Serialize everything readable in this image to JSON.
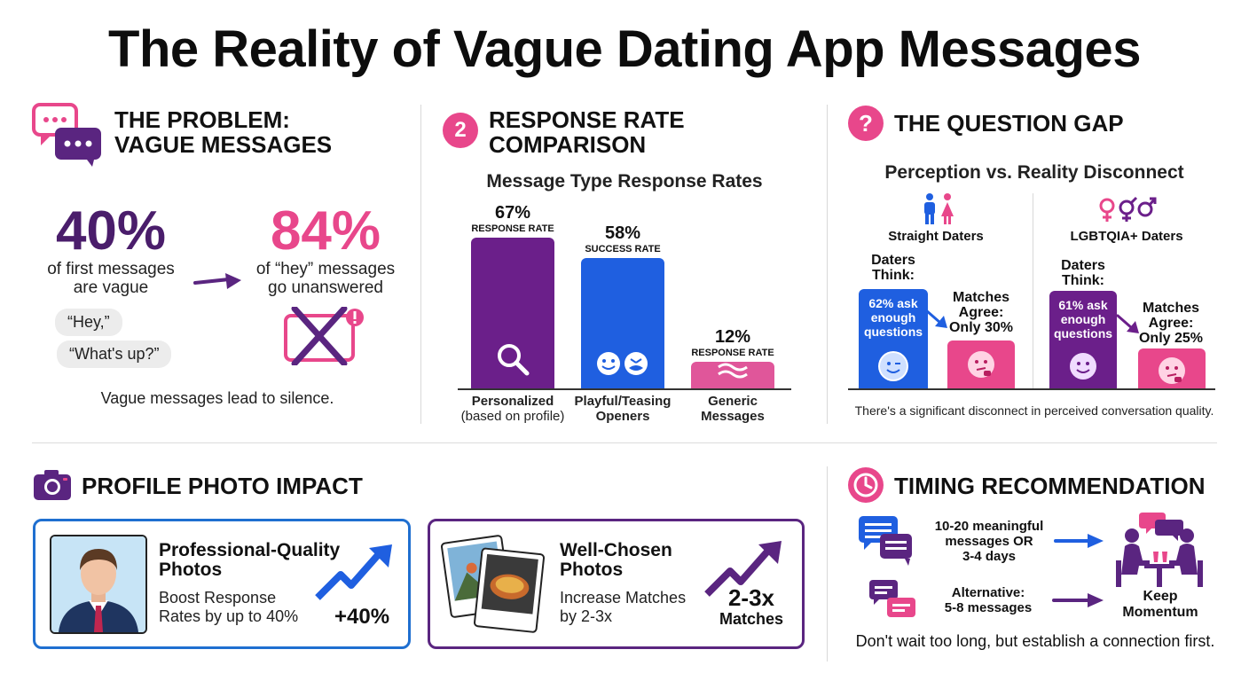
{
  "title": "The Reality of Vague Dating App Messages",
  "problem": {
    "heading_line1": "THE PROBLEM:",
    "heading_line2": "VAGUE MESSAGES",
    "stat1_value": "40%",
    "stat1_desc_line1": "of first messages",
    "stat1_desc_line2": "are vague",
    "stat2_value": "84%",
    "stat2_desc_line1": "of “hey” messages",
    "stat2_desc_line2": "go unanswered",
    "bubble1": "“Hey,”",
    "bubble2": "“What's up?”",
    "caption": "Vague messages lead to silence.",
    "colors": {
      "purple": "#4a1d6b",
      "pink": "#e8478b"
    }
  },
  "response": {
    "badge": "2",
    "heading_line1": "RESPONSE RATE",
    "heading_line2": "COMPARISON",
    "chart_title": "Message Type Response Rates"
  },
  "chart_data": {
    "type": "bar",
    "title": "Message Type Response Rates",
    "categories": [
      "Personalized (based on profile)",
      "Playful/Teasing Openers",
      "Generic Messages"
    ],
    "values": [
      67,
      58,
      12
    ],
    "value_labels": [
      "67%",
      "58%",
      "12%"
    ],
    "value_sublabels": [
      "RESPONSE RATE",
      "SUCCESS RATE",
      "RESPONSE RATE"
    ],
    "cat_line1": [
      "Personalized",
      "Playful/Teasing",
      "Generic"
    ],
    "cat_line2": [
      "(based on profile)",
      "Openers",
      "Messages"
    ],
    "colors": [
      "#6b1f8a",
      "#1f5fe0",
      "#e0569a"
    ],
    "ylim": [
      0,
      67
    ]
  },
  "question": {
    "heading": "THE QUESTION GAP",
    "subtitle": "Perception vs. Reality Disconnect",
    "straight": {
      "label": "Straight Daters",
      "think_label_line1": "Daters",
      "think_label_line2": "Think:",
      "think_value_line1": "62% ask",
      "think_value_line2": "enough",
      "think_value_line3": "questions",
      "agree_line1": "Matches",
      "agree_line2": "Agree:",
      "agree_line3": "Only 30%",
      "think_pct": 62,
      "agree_pct": 30
    },
    "lgbt": {
      "label": "LGBTQIA+ Daters",
      "think_label_line1": "Daters",
      "think_label_line2": "Think:",
      "think_value_line1": "61% ask",
      "think_value_line2": "enough",
      "think_value_line3": "questions",
      "agree_line1": "Matches",
      "agree_line2": "Agree:",
      "agree_line3": "Only 25%",
      "think_pct": 61,
      "agree_pct": 25
    },
    "caption": "There's a significant disconnect in perceived conversation quality."
  },
  "photo": {
    "heading": "PROFILE PHOTO IMPACT",
    "card1": {
      "title_line1": "Professional-Quality",
      "title_line2": "Photos",
      "desc_line1": "Boost Response",
      "desc_line2": "Rates by up to 40%",
      "stat": "+40%"
    },
    "card2": {
      "title_line1": "Well-Chosen",
      "title_line2": "Photos",
      "desc_line1": "Increase Matches",
      "desc_line2": "by 2-3x",
      "stat_line1": "2-3x",
      "stat_line2": "Matches"
    }
  },
  "timing": {
    "heading": "TIMING RECOMMENDATION",
    "rec1_line1": "10-20 meaningful",
    "rec1_line2": "messages OR",
    "rec1_line3": "3-4 days",
    "rec2_line1": "Alternative:",
    "rec2_line2": "5-8 messages",
    "result_line1": "Keep",
    "result_line2": "Momentum",
    "caption": "Don't wait too long, but establish a connection first."
  }
}
